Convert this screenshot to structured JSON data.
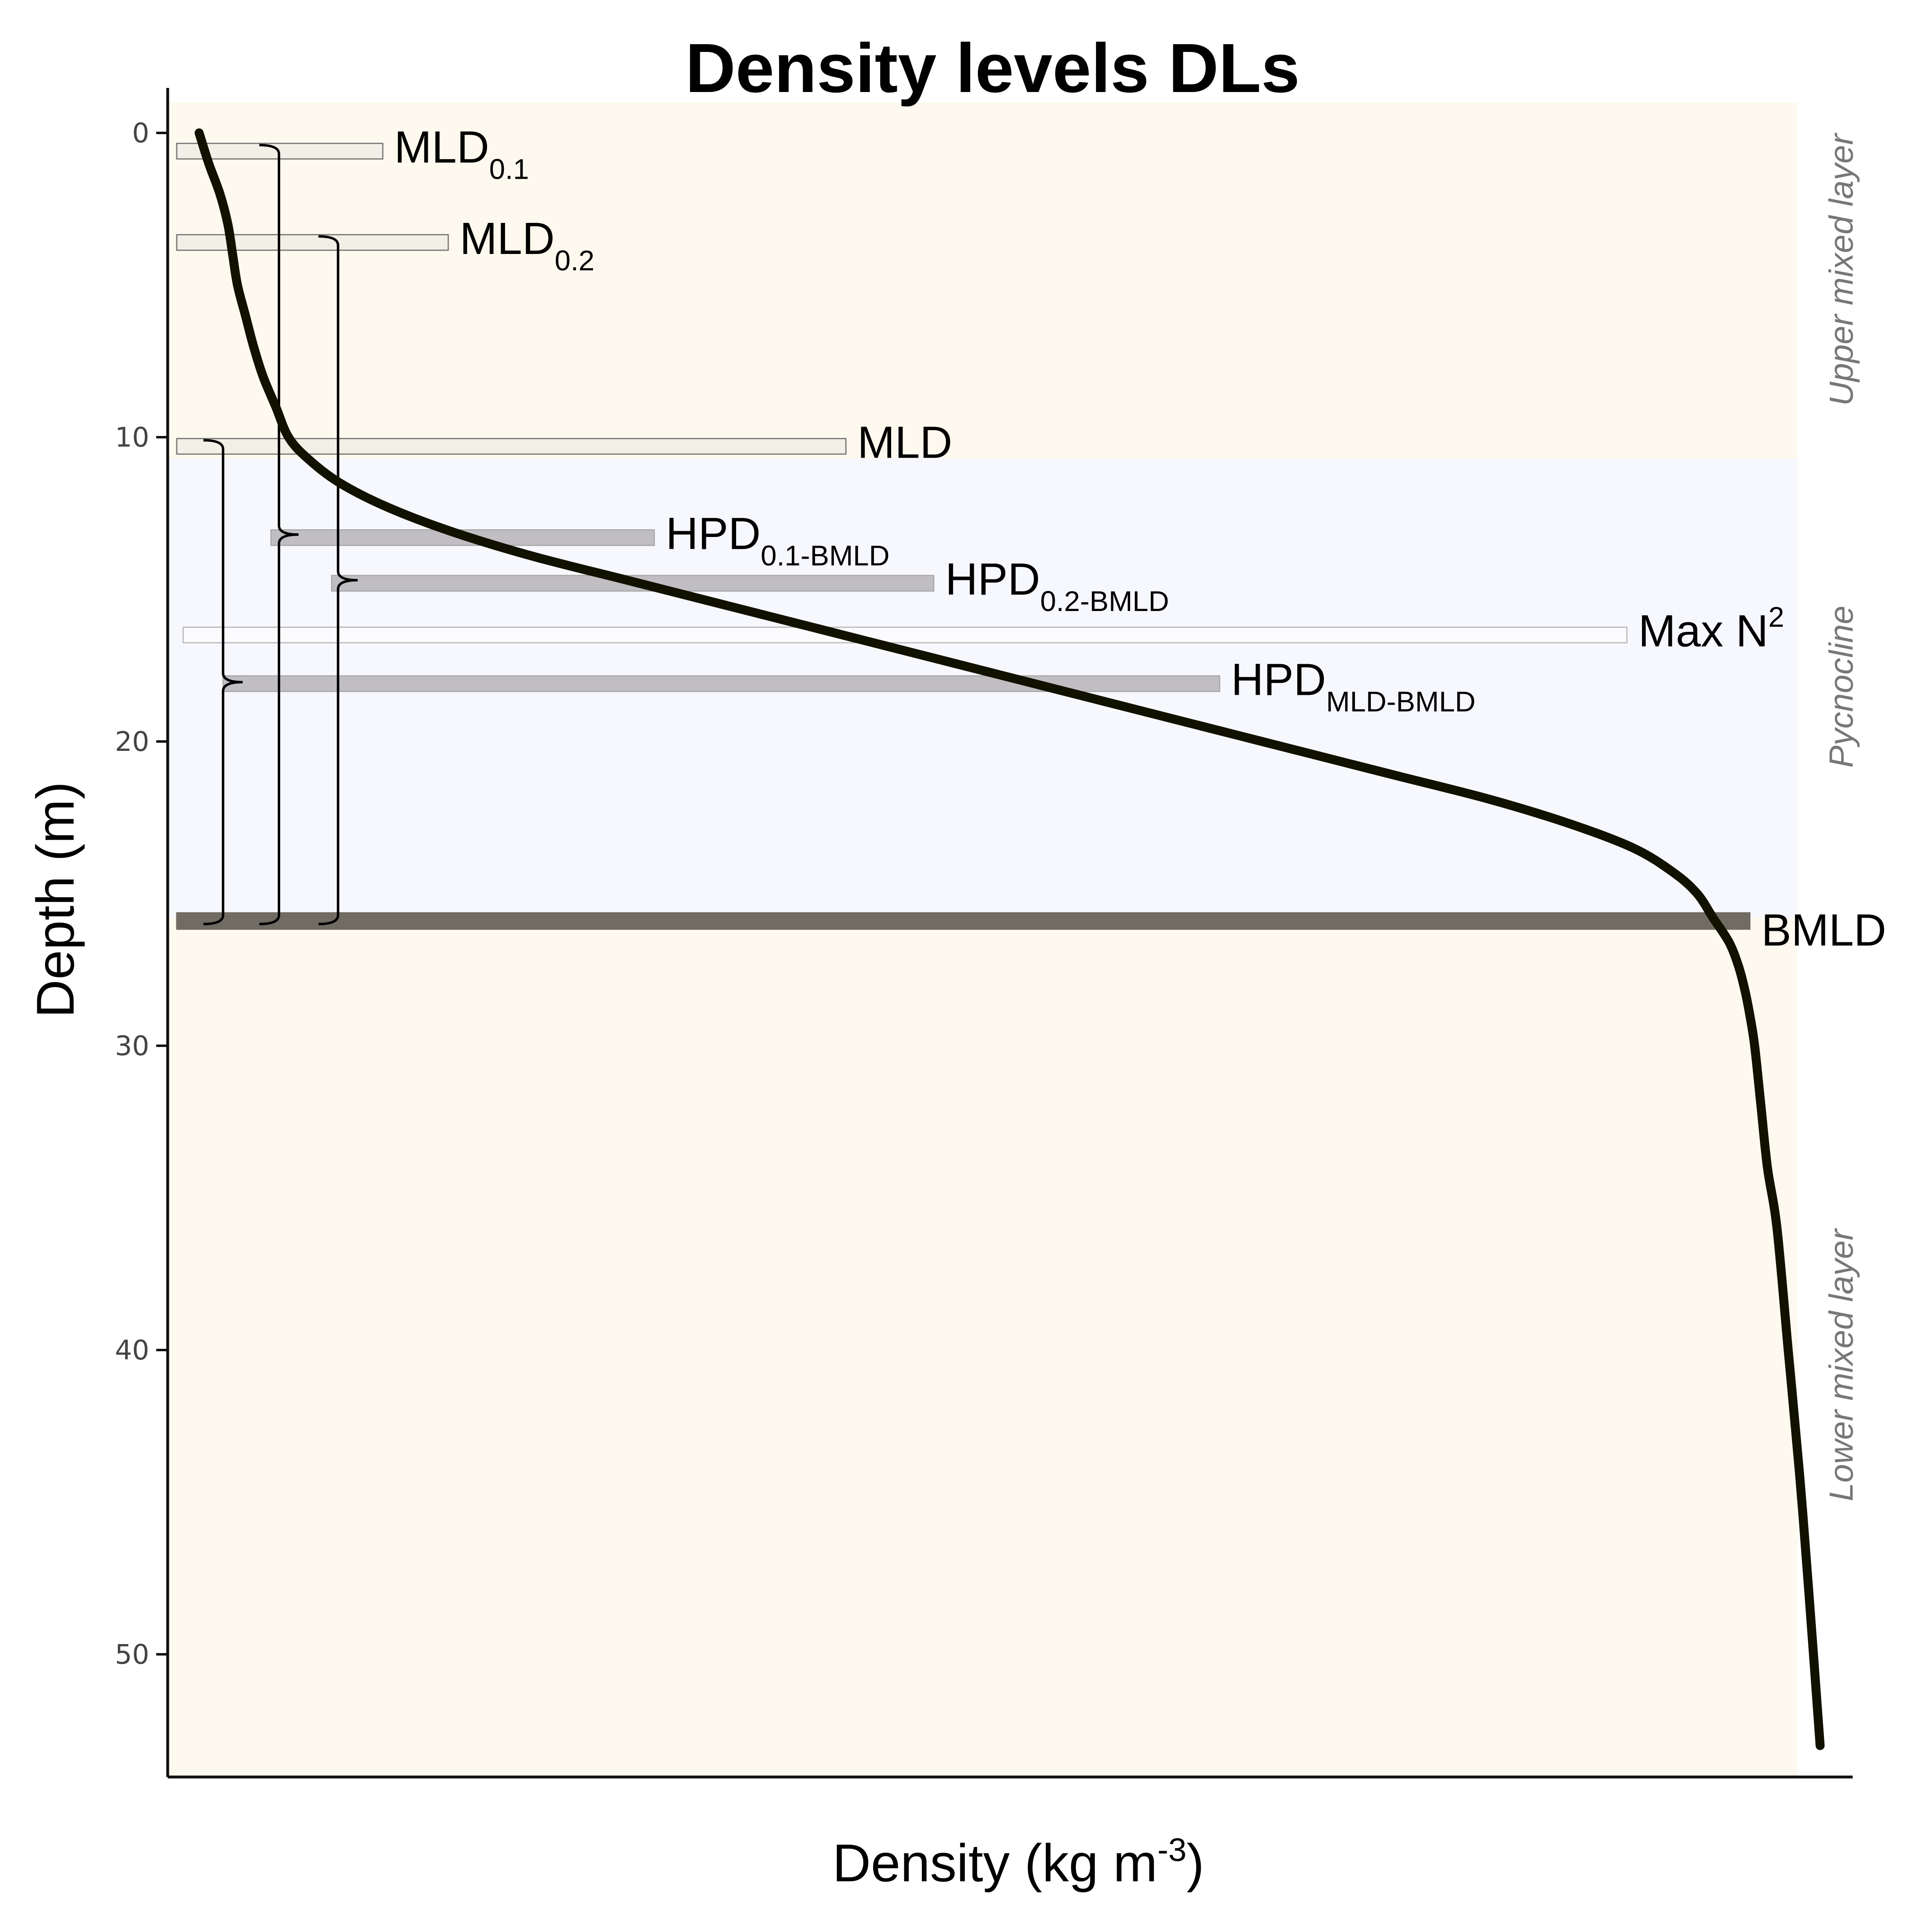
{
  "chart_data": {
    "type": "line",
    "title": "Density levels DLs",
    "xlabel": {
      "main": "Density (kg m",
      "sup": "-3",
      "close": ")"
    },
    "ylabel": "Depth (m)",
    "y_reversed": true,
    "ylim": [
      -1.5,
      54.5
    ],
    "x_ticks_shown": false,
    "y_ticks": [
      0,
      10,
      20,
      30,
      40,
      50
    ],
    "grid": false,
    "zones": [
      {
        "name": "Upper mixed layer",
        "from": -1,
        "to": 10.7,
        "color": "#fdf9ee"
      },
      {
        "name": "Pycnocline",
        "from": 10.7,
        "to": 25.8,
        "color": "#f7f8fd"
      },
      {
        "name": "Lower mixed layer",
        "from": 25.8,
        "to": 54.5,
        "color": "#fdf9ee"
      }
    ],
    "series": [
      {
        "color": "#111100",
        "x": [
          0.012,
          0.018,
          0.025,
          0.03,
          0.033,
          0.036,
          0.041,
          0.046,
          0.052,
          0.06,
          0.068,
          0.08,
          0.1,
          0.13,
          0.17,
          0.22,
          0.28,
          0.34,
          0.4,
          0.46,
          0.52,
          0.58,
          0.64,
          0.7,
          0.76,
          0.82,
          0.87,
          0.91,
          0.935,
          0.95,
          0.96,
          0.97,
          0.976,
          0.98,
          0.983,
          0.986,
          0.99,
          0.994,
          1.0,
          1.007,
          1.014,
          1.02,
          1.027
        ],
        "y": [
          0,
          1,
          2,
          3,
          4,
          5,
          6,
          7,
          8,
          9,
          10,
          10.7,
          11.5,
          12.3,
          13.1,
          13.9,
          14.7,
          15.5,
          16.3,
          17.1,
          17.9,
          18.7,
          19.5,
          20.3,
          21.1,
          21.9,
          22.7,
          23.5,
          24.3,
          25.0,
          25.8,
          26.6,
          27.4,
          28.2,
          29.0,
          30.0,
          32.0,
          34.0,
          36.0,
          40.0,
          44.0,
          48.0,
          53.0
        ]
      }
    ],
    "levels": [
      {
        "name": "MLD",
        "sub": "0.1",
        "depth": 0.6,
        "x_start": -0.002,
        "x_end": 0.127,
        "fill": "#f2f0e6",
        "stroke": "#777777"
      },
      {
        "name": "MLD",
        "sub": "0.2",
        "depth": 3.6,
        "x_start": -0.002,
        "x_end": 0.168,
        "fill": "#f2f0e6",
        "stroke": "#777777"
      },
      {
        "name": "MLD",
        "sub": "",
        "depth": 10.3,
        "x_start": -0.002,
        "x_end": 0.417,
        "fill": "#f2f0e6",
        "stroke": "#777777"
      },
      {
        "name": "HPD",
        "sub": "0.1-BMLD",
        "depth": 13.3,
        "x_start": 0.057,
        "x_end": 0.297,
        "fill": "#c0bec2",
        "stroke": "#aaaaaa"
      },
      {
        "name": "HPD",
        "sub": "0.2-BMLD",
        "depth": 14.8,
        "x_start": 0.095,
        "x_end": 0.472,
        "fill": "#c0bec2",
        "stroke": "#aaaaaa"
      },
      {
        "name": "Max N",
        "sup": "2",
        "depth": 16.5,
        "x_start": 0.002,
        "x_end": 0.906,
        "fill": "#fbfbfd",
        "stroke": "#bbbbbb"
      },
      {
        "name": "HPD",
        "sub": "MLD-BMLD",
        "depth": 18.1,
        "x_start": 0.027,
        "x_end": 0.651,
        "fill": "#c0bec2",
        "stroke": "#aaaaaa"
      },
      {
        "name": "BMLD",
        "sub": "",
        "depth": 25.9,
        "x_start": -0.002,
        "x_end": 0.983,
        "fill": "#716c63",
        "stroke": "#716c63"
      }
    ],
    "braces": [
      {
        "from": 0.4,
        "to": 26.0,
        "x": 0.062
      },
      {
        "from": 3.4,
        "to": 26.0,
        "x": 0.099
      },
      {
        "from": 10.1,
        "to": 26.0,
        "x": 0.027
      }
    ]
  }
}
